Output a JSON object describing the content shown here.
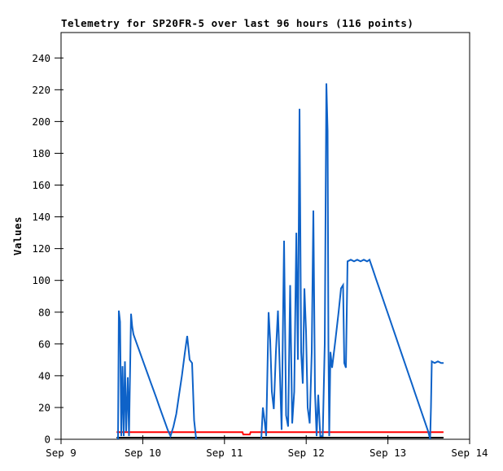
{
  "title": "Telemetry for SP20FR-5 over last 96 hours (116 points)",
  "colors": {
    "telemetry_line": "#0e62c8",
    "threshold_line": "#ff0000",
    "baseline_line": "#000000",
    "axis": "#000000",
    "background": "#ffffff"
  },
  "chart_data": {
    "type": "line",
    "title": "Telemetry for SP20FR-5 over last 96 hours (116 points)",
    "xlabel": "",
    "ylabel": "Values",
    "grid": false,
    "legend": null,
    "ylim": [
      0,
      256
    ],
    "xlim_days": [
      0,
      5
    ],
    "y_ticks": [
      0,
      20,
      40,
      60,
      80,
      100,
      120,
      140,
      160,
      180,
      200,
      220,
      240
    ],
    "x_ticks": [
      {
        "day": 0,
        "label": "Sep 9"
      },
      {
        "day": 1,
        "label": "Sep 10"
      },
      {
        "day": 2,
        "label": "Sep 11"
      },
      {
        "day": 3,
        "label": "Sep 12"
      },
      {
        "day": 4,
        "label": "Sep 13"
      },
      {
        "day": 5,
        "label": "Sep 14"
      }
    ],
    "x_unit": "days after Sep 9",
    "series": [
      {
        "name": "telemetry",
        "color_key": "telemetry_line",
        "stroke_width": 2,
        "segments": [
          [
            [
              0.697,
              0
            ],
            [
              0.707,
              81
            ],
            [
              0.722,
              74
            ],
            [
              0.737,
              2
            ],
            [
              0.752,
              46
            ],
            [
              0.767,
              2
            ],
            [
              0.782,
              49
            ],
            [
              0.797,
              5
            ],
            [
              0.817,
              39
            ],
            [
              0.832,
              2
            ],
            [
              0.857,
              79
            ],
            [
              0.871,
              71
            ],
            [
              0.886,
              66
            ],
            [
              0.921,
              61
            ],
            [
              0.956,
              56
            ],
            [
              0.991,
              51
            ],
            [
              1.026,
              46
            ],
            [
              1.061,
              41
            ],
            [
              1.096,
              36
            ],
            [
              1.131,
              31
            ],
            [
              1.166,
              26
            ],
            [
              1.2,
              21
            ],
            [
              1.235,
              16
            ],
            [
              1.27,
              11
            ],
            [
              1.305,
              6
            ],
            [
              1.34,
              2
            ],
            [
              1.375,
              8
            ],
            [
              1.41,
              16
            ],
            [
              1.444,
              28
            ],
            [
              1.479,
              40
            ],
            [
              1.514,
              54
            ],
            [
              1.544,
              65
            ],
            [
              1.574,
              50
            ],
            [
              1.604,
              48
            ],
            [
              1.628,
              12
            ],
            [
              1.653,
              0
            ]
          ],
          [
            [
              2.45,
              0
            ],
            [
              2.47,
              20
            ],
            [
              2.49,
              12
            ],
            [
              2.51,
              2
            ],
            [
              2.54,
              80
            ],
            [
              2.56,
              62
            ],
            [
              2.58,
              30
            ],
            [
              2.604,
              19
            ],
            [
              2.629,
              55
            ],
            [
              2.654,
              81
            ],
            [
              2.679,
              40
            ],
            [
              2.699,
              6
            ],
            [
              2.729,
              125
            ],
            [
              2.754,
              15
            ],
            [
              2.779,
              8
            ],
            [
              2.804,
              97
            ],
            [
              2.829,
              10
            ],
            [
              2.854,
              30
            ],
            [
              2.879,
              130
            ],
            [
              2.898,
              50
            ],
            [
              2.918,
              208
            ],
            [
              2.938,
              55
            ],
            [
              2.958,
              35
            ],
            [
              2.978,
              95
            ],
            [
              2.998,
              68
            ],
            [
              3.018,
              20
            ],
            [
              3.043,
              10
            ],
            [
              3.068,
              55
            ],
            [
              3.088,
              144
            ],
            [
              3.108,
              30
            ],
            [
              3.127,
              2
            ],
            [
              3.147,
              28
            ],
            [
              3.172,
              2
            ],
            [
              3.202,
              2
            ],
            [
              3.227,
              60
            ],
            [
              3.247,
              224
            ],
            [
              3.262,
              194
            ],
            [
              3.272,
              60
            ],
            [
              3.282,
              2
            ],
            [
              3.297,
              55
            ],
            [
              3.317,
              45
            ],
            [
              3.357,
              62
            ],
            [
              3.396,
              80
            ],
            [
              3.426,
              95
            ],
            [
              3.451,
              97
            ],
            [
              3.466,
              48
            ],
            [
              3.486,
              45
            ],
            [
              3.506,
              112
            ],
            [
              3.546,
              113
            ],
            [
              3.586,
              112
            ],
            [
              3.625,
              113
            ],
            [
              3.665,
              112
            ],
            [
              3.705,
              113
            ],
            [
              3.745,
              112
            ],
            [
              3.775,
              113
            ],
            [
              3.815,
              107
            ],
            [
              3.854,
              101
            ],
            [
              3.894,
              95
            ],
            [
              3.934,
              89
            ],
            [
              3.974,
              83
            ],
            [
              4.014,
              77
            ],
            [
              4.054,
              71
            ],
            [
              4.094,
              65
            ],
            [
              4.133,
              59
            ],
            [
              4.173,
              53
            ],
            [
              4.213,
              47
            ],
            [
              4.253,
              41
            ],
            [
              4.293,
              35
            ],
            [
              4.333,
              29
            ],
            [
              4.373,
              23
            ],
            [
              4.412,
              17
            ],
            [
              4.452,
              11
            ],
            [
              4.492,
              5
            ],
            [
              4.517,
              0
            ],
            [
              4.527,
              20
            ],
            [
              4.537,
              49
            ],
            [
              4.572,
              48
            ],
            [
              4.612,
              49
            ],
            [
              4.651,
              48
            ],
            [
              4.681,
              48
            ]
          ]
        ]
      },
      {
        "name": "threshold",
        "color_key": "threshold_line",
        "stroke_width": 2,
        "segments": [
          [
            [
              0.68,
              4.5
            ],
            [
              2.22,
              4.5
            ],
            [
              2.23,
              3
            ],
            [
              2.31,
              3
            ],
            [
              2.32,
              4.5
            ],
            [
              4.68,
              4.5
            ]
          ]
        ]
      },
      {
        "name": "baseline",
        "color_key": "baseline_line",
        "stroke_width": 2,
        "segments": [
          [
            [
              0.68,
              1
            ],
            [
              4.68,
              1
            ]
          ]
        ]
      }
    ]
  }
}
